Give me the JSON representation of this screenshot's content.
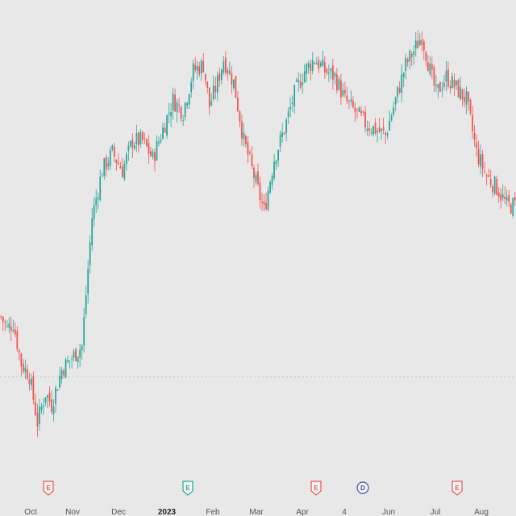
{
  "chart_data": {
    "type": "candlestick",
    "title": "",
    "xlabel": "",
    "ylabel": "",
    "grid": false,
    "colors": {
      "up": "#26a69a",
      "down": "#ef5350",
      "background": "#e8e8e8"
    },
    "x_ticks": [
      {
        "label": "Oct",
        "bold": false
      },
      {
        "label": "Nov",
        "bold": false
      },
      {
        "label": "Dec",
        "bold": false
      },
      {
        "label": "2023",
        "bold": true
      },
      {
        "label": "Feb",
        "bold": false
      },
      {
        "label": "Mar",
        "bold": false
      },
      {
        "label": "Apr",
        "bold": false
      },
      {
        "label": "4",
        "bold": false
      },
      {
        "label": "Jun",
        "bold": false
      },
      {
        "label": "Jul",
        "bold": false
      },
      {
        "label": "Aug",
        "bold": false
      }
    ],
    "events": [
      {
        "letter": "E",
        "type": "earnings",
        "color": "#ef5350",
        "period": "Oct-Nov"
      },
      {
        "letter": "E",
        "type": "earnings",
        "color": "#26a69a",
        "period": "2023-Feb"
      },
      {
        "letter": "E",
        "type": "earnings",
        "color": "#ef5350",
        "period": "Apr"
      },
      {
        "letter": "D",
        "type": "dividend",
        "color": "#3f51b5",
        "period": "Apr-Jun"
      },
      {
        "letter": "E",
        "type": "earnings",
        "color": "#ef5350",
        "period": "Jul-Aug"
      }
    ],
    "price_path": [
      [
        0,
        38
      ],
      [
        3,
        36
      ],
      [
        6,
        37
      ],
      [
        10,
        30
      ],
      [
        14,
        28
      ],
      [
        18,
        20
      ],
      [
        22,
        25
      ],
      [
        25,
        23
      ],
      [
        30,
        29
      ],
      [
        35,
        31
      ],
      [
        40,
        33
      ],
      [
        45,
        55
      ],
      [
        50,
        63
      ],
      [
        55,
        66
      ],
      [
        60,
        63
      ],
      [
        65,
        68
      ],
      [
        70,
        68
      ],
      [
        75,
        65
      ],
      [
        80,
        70
      ],
      [
        85,
        75
      ],
      [
        90,
        73
      ],
      [
        95,
        80
      ],
      [
        100,
        81
      ],
      [
        103,
        74
      ],
      [
        107,
        78
      ],
      [
        110,
        82
      ],
      [
        115,
        78
      ],
      [
        120,
        68
      ],
      [
        125,
        62
      ],
      [
        130,
        56
      ],
      [
        135,
        65
      ],
      [
        140,
        70
      ],
      [
        145,
        76
      ],
      [
        150,
        80
      ],
      [
        155,
        82
      ],
      [
        160,
        80
      ],
      [
        165,
        79
      ],
      [
        170,
        75
      ],
      [
        175,
        73
      ],
      [
        180,
        71
      ],
      [
        185,
        70
      ],
      [
        190,
        69
      ],
      [
        195,
        75
      ],
      [
        200,
        81
      ],
      [
        205,
        84
      ],
      [
        208,
        86
      ],
      [
        212,
        80
      ],
      [
        215,
        76
      ],
      [
        220,
        79
      ],
      [
        225,
        77
      ],
      [
        230,
        75
      ],
      [
        235,
        66
      ],
      [
        240,
        62
      ],
      [
        245,
        60
      ],
      [
        250,
        57
      ]
    ]
  }
}
